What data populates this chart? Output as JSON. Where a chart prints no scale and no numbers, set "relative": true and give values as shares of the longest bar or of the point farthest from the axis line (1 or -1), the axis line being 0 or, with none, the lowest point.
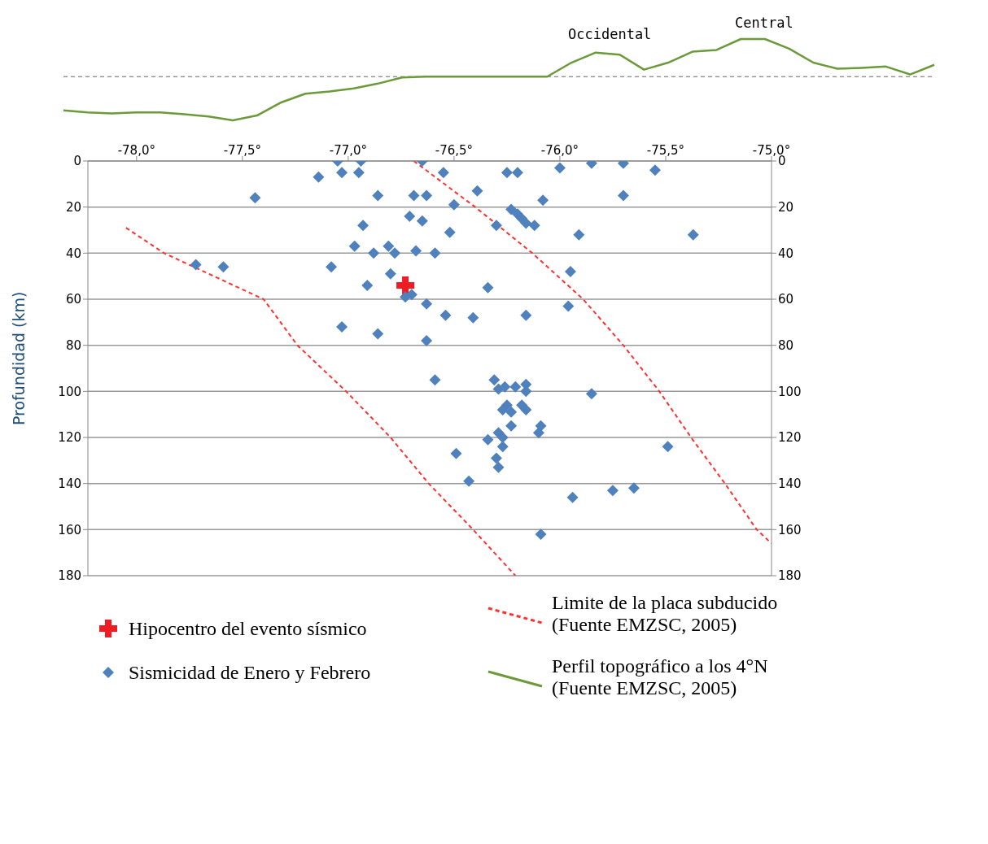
{
  "chart_data": [
    {
      "type": "line",
      "relative": true,
      "annotations": [
        "Occidental",
        "Central"
      ],
      "categories": [
        null,
        null,
        null,
        null,
        null,
        null,
        null,
        null,
        null,
        null,
        null,
        null,
        null,
        null,
        null,
        null,
        null,
        null,
        null,
        null,
        null,
        null,
        null,
        null,
        null,
        null,
        null,
        null,
        null,
        null,
        null,
        null,
        null,
        null,
        null,
        null,
        null
      ],
      "series": [
        {
          "name": "Perfil topográfico a los 4°N (Fuente EMZSC, 2005)",
          "color": "#6a9a3a",
          "values": [
            -0.77,
            -0.82,
            -0.84,
            -0.82,
            -0.82,
            -0.86,
            -0.91,
            -1,
            -0.89,
            -0.59,
            -0.39,
            -0.34,
            -0.27,
            -0.16,
            -0.02,
            0,
            0,
            0,
            0,
            0,
            0,
            0.32,
            0.55,
            0.5,
            0.16,
            0.32,
            0.57,
            0.61,
            0.86,
            0.86,
            0.64,
            0.32,
            0.18,
            0.2,
            0.23,
            0.05,
            0.27
          ]
        }
      ],
      "ref_lines": [
        {
          "axis": "y",
          "value": 0,
          "color": "#666666",
          "line_style": "dashed"
        }
      ],
      "legend": "bottom"
    },
    {
      "type": "scatter",
      "ylabel": "Profundidad (km)",
      "xlim": [
        -78.23,
        -75.0
      ],
      "xticks": [
        {
          "value": -78,
          "label": "-78,0°"
        },
        {
          "value": -77.5,
          "label": "-77,5°"
        },
        {
          "value": -77,
          "label": "-77,0°"
        },
        {
          "value": -76.5,
          "label": "-76,5°"
        },
        {
          "value": -76,
          "label": "-76,0°"
        },
        {
          "value": -75.5,
          "label": "-75,5°"
        },
        {
          "value": -75,
          "label": "-75,0°"
        }
      ],
      "ylim": [
        180,
        0
      ],
      "yticks": [
        0,
        20,
        40,
        60,
        80,
        100,
        120,
        140,
        160,
        180
      ],
      "y2lim": [
        180,
        0
      ],
      "y2ticks": [
        0,
        20,
        40,
        60,
        80,
        100,
        120,
        140,
        160,
        180
      ],
      "grid": "y",
      "legend": "bottom",
      "series": [
        {
          "name": "Hipocentro del evento sísmico",
          "color": "#ee1c25",
          "marker": "cross",
          "x": [
            -76.73
          ],
          "values": [
            54
          ]
        },
        {
          "name": "Sismicidad de Enero y Febrero",
          "color": "#4f81bd",
          "marker": "diamond",
          "x": [
            -77.05,
            -77.03,
            -76.94,
            -76.95,
            -77.14,
            -77.44,
            -76.86,
            -76.93,
            -76.97,
            -76.88,
            -76.81,
            -76.78,
            -76.68,
            -76.71,
            -76.69,
            -76.63,
            -76.65,
            -76.65,
            -77.72,
            -77.59,
            -77.08,
            -76.8,
            -76.91,
            -76.73,
            -76.7,
            -76.63,
            -77.03,
            -76.86,
            -76.63,
            -76.55,
            -76.59,
            -76.39,
            -76.5,
            -76.52,
            -76.3,
            -76.25,
            -76.2,
            -76.23,
            -76.2,
            -76.18,
            -76.16,
            -76.12,
            -76.08,
            -76.0,
            -75.85,
            -75.7,
            -75.55,
            -75.7,
            -75.91,
            -75.37,
            -75.95,
            -75.96,
            -76.34,
            -76.54,
            -76.41,
            -76.16,
            -76.59,
            -76.31,
            -76.29,
            -76.26,
            -76.21,
            -76.16,
            -76.16,
            -75.85,
            -76.25,
            -76.27,
            -76.23,
            -76.18,
            -76.16,
            -76.23,
            -76.09,
            -76.1,
            -76.34,
            -76.29,
            -76.27,
            -76.27,
            -76.49,
            -76.3,
            -76.29,
            -76.43,
            -75.49,
            -75.94,
            -75.75,
            -75.65,
            -76.09
          ],
          "values": [
            0,
            5,
            0,
            5,
            7,
            16,
            15,
            28,
            37,
            40,
            37,
            40,
            39,
            24,
            15,
            15,
            0,
            26,
            45,
            46,
            46,
            49,
            54,
            59,
            58,
            62,
            72,
            75,
            78,
            5,
            40,
            13,
            19,
            31,
            28,
            5,
            5,
            21,
            23,
            25,
            27,
            28,
            17,
            3,
            1,
            1,
            4,
            15,
            32,
            32,
            48,
            63,
            55,
            67,
            68,
            67,
            95,
            95,
            99,
            98,
            98,
            97,
            100,
            101,
            106,
            108,
            109,
            106,
            108,
            115,
            115,
            118,
            121,
            118,
            120,
            124,
            127,
            129,
            133,
            139,
            124,
            146,
            143,
            142,
            162
          ]
        },
        {
          "type": "line",
          "name": "Limite de la placa subducido (Fuente EMZSC, 2005)",
          "color": "#ff3030",
          "line_style": "dashed",
          "marker": "none",
          "x": [
            -78.05,
            -77.87,
            -77.4,
            -77.24,
            -77.01,
            -76.8,
            -76.62,
            -76.41,
            -76.21
          ],
          "values": [
            29,
            40,
            60,
            80,
            100,
            120,
            140,
            160,
            180
          ]
        },
        {
          "type": "line",
          "color": "#ff3030",
          "line_style": "dashed",
          "marker": "none",
          "x": [
            -76.69,
            -76.4,
            -76.13,
            -75.89,
            -75.7,
            -75.53,
            -75.38,
            -75.22,
            -75.07,
            -75.0
          ],
          "values": [
            0,
            20,
            40,
            60,
            80,
            100,
            120,
            140,
            160,
            166
          ]
        }
      ]
    }
  ]
}
